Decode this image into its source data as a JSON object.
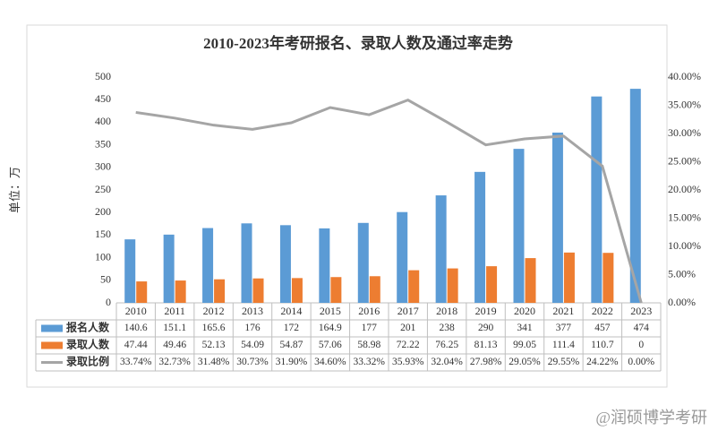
{
  "chart_data": {
    "type": "bar-line",
    "title": "2010-2023年考研报名、录取人数及通过率走势",
    "y_label": "单位：万",
    "watermark": "@润硕博学考研",
    "categories": [
      "2010",
      "2011",
      "2012",
      "2013",
      "2014",
      "2015",
      "2016",
      "2017",
      "2018",
      "2019",
      "2020",
      "2021",
      "2022",
      "2023"
    ],
    "series": [
      {
        "name": "报名人数",
        "color": "#5b9bd5",
        "type": "bar",
        "values": [
          140.6,
          151.1,
          165.6,
          176,
          172,
          164.9,
          177,
          201,
          238,
          290,
          341,
          377,
          457,
          474
        ]
      },
      {
        "name": "录取人数",
        "color": "#ed7d31",
        "type": "bar",
        "values": [
          47.44,
          49.46,
          52.13,
          54.09,
          54.87,
          57.06,
          58.98,
          72.22,
          76.25,
          81.13,
          99.05,
          111.4,
          110.7,
          0
        ]
      },
      {
        "name": "录取比例",
        "color": "#a5a5a5",
        "type": "line",
        "axis": "y2",
        "values": [
          33.74,
          32.73,
          31.48,
          30.73,
          31.9,
          34.6,
          33.32,
          35.93,
          32.04,
          27.98,
          29.05,
          29.55,
          24.22,
          0
        ],
        "value_labels": [
          "33.74%",
          "32.73%",
          "31.48%",
          "30.73%",
          "31.90%",
          "34.60%",
          "33.32%",
          "35.93%",
          "32.04%",
          "27.98%",
          "29.05%",
          "29.55%",
          "24.22%",
          "0.00%"
        ]
      }
    ],
    "ylim": [
      0,
      500
    ],
    "yticks": [
      0,
      50,
      100,
      150,
      200,
      250,
      300,
      350,
      400,
      450,
      500
    ],
    "y2lim": [
      0,
      40
    ],
    "y2ticks": [
      {
        "value": 0,
        "label": "0.00%"
      },
      {
        "value": 5,
        "label": "5.00%"
      },
      {
        "value": 10,
        "label": "10.00%"
      },
      {
        "value": 15,
        "label": "15.00%"
      },
      {
        "value": 20,
        "label": "20.00%"
      },
      {
        "value": 25,
        "label": "25.00%"
      },
      {
        "value": 30,
        "label": "30.00%"
      },
      {
        "value": 35,
        "label": "35.00%"
      },
      {
        "value": 40,
        "label": "40.00%"
      }
    ],
    "grid": false
  }
}
